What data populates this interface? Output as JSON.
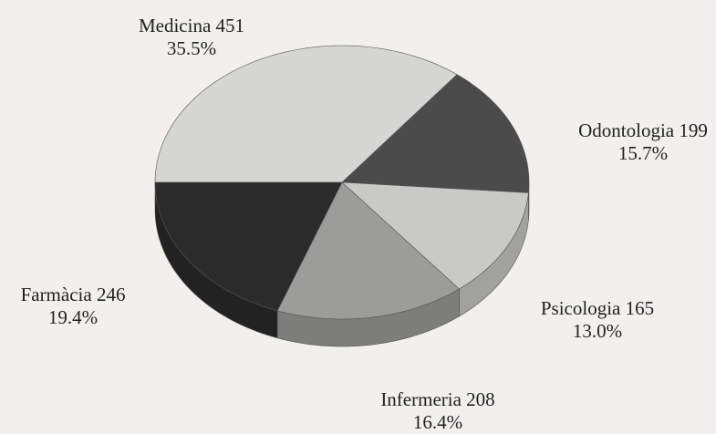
{
  "chart_data": {
    "type": "pie",
    "categories": [
      "Medicina",
      "Odontologia",
      "Psicologia",
      "Infermeria",
      "Farmàcia"
    ],
    "values": [
      451,
      199,
      165,
      208,
      246
    ],
    "percentages": [
      35.5,
      15.7,
      13.0,
      16.4,
      19.4
    ],
    "percentage_labels": [
      "35.5%",
      "15.7%",
      "13.0%",
      "16.4%",
      "19.4%"
    ],
    "colors": [
      "#d6d6d4",
      "#4b4b4b",
      "#c9c9c7",
      "#9c9c9a",
      "#2b2b2b"
    ]
  }
}
